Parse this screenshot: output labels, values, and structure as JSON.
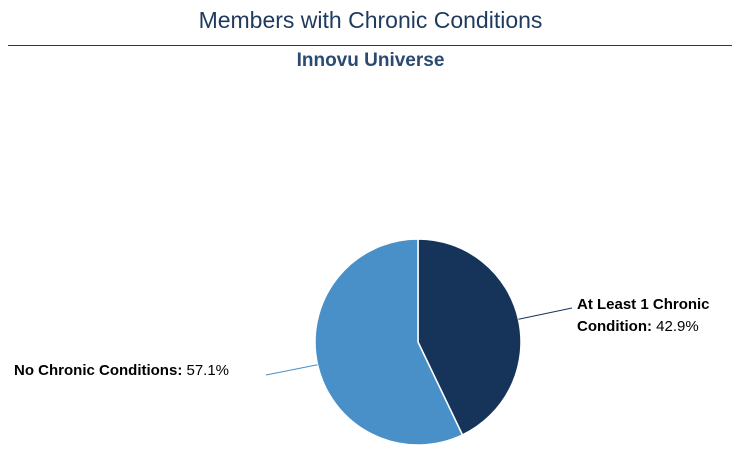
{
  "chart_data": {
    "type": "pie",
    "title": "Members with Chronic Conditions",
    "subtitle": "Innovu Universe",
    "start_angle_deg": 0,
    "direction": "clockwise",
    "slices": [
      {
        "label_line1": "At Least 1 Chronic",
        "label_line2": "Condition:",
        "percent_label": "42.9%",
        "value": 42.9,
        "color": "#163459"
      },
      {
        "label_line1": "No Chronic Conditions:",
        "percent_label": "57.1%",
        "value": 57.1,
        "color": "#4a90c8"
      }
    ]
  }
}
